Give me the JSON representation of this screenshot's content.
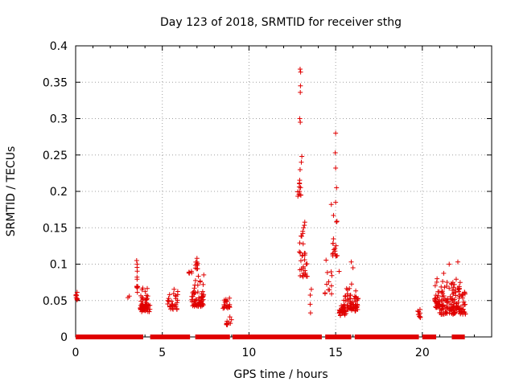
{
  "chart_data": {
    "type": "scatter",
    "title": "Day 123 of 2018, SRMTID for receiver sthg",
    "xlabel": "GPS time / hours",
    "ylabel": "SRMTID / TECUs",
    "xlim": [
      0,
      24
    ],
    "ylim": [
      0,
      0.4
    ],
    "x_ticks": [
      0,
      5,
      10,
      15,
      20
    ],
    "x_tick_labels": [
      "0",
      "5",
      "10",
      "15",
      "20"
    ],
    "y_ticks": [
      0,
      0.05,
      0.1,
      0.15,
      0.2,
      0.25,
      0.3,
      0.35,
      0.4
    ],
    "y_tick_labels": [
      "0",
      "0.05",
      "0.1",
      "0.15",
      "0.2",
      "0.25",
      "0.3",
      "0.35",
      "0.4"
    ],
    "grid": true,
    "marker": "plus",
    "color": "#e00000",
    "zero_segments": [
      [
        0.0,
        3.9
      ],
      [
        4.3,
        6.6
      ],
      [
        6.9,
        8.9
      ],
      [
        9.05,
        14.2
      ],
      [
        14.4,
        15.9
      ],
      [
        16.1,
        19.8
      ],
      [
        20.0,
        20.8
      ],
      [
        21.7,
        22.45
      ]
    ],
    "clusters": [
      {
        "x0": 0.0,
        "x1": 0.12,
        "n": 8,
        "y": [
          0.045,
          0.068
        ]
      },
      {
        "x0": 3.0,
        "x1": 3.1,
        "n": 2,
        "y": [
          0.052,
          0.06
        ]
      },
      {
        "x0": 3.5,
        "x1": 3.6,
        "n": 10,
        "y": [
          0.05,
          0.108
        ]
      },
      {
        "x0": 3.7,
        "x1": 4.3,
        "n": 60,
        "y": [
          0.025,
          0.075
        ]
      },
      {
        "x0": 5.3,
        "x1": 5.9,
        "n": 30,
        "y": [
          0.025,
          0.09
        ]
      },
      {
        "x0": 6.5,
        "x1": 6.7,
        "n": 6,
        "y": [
          0.085,
          0.098
        ]
      },
      {
        "x0": 6.7,
        "x1": 7.4,
        "n": 70,
        "y": [
          0.03,
          0.09
        ]
      },
      {
        "x0": 6.9,
        "x1": 7.1,
        "n": 8,
        "y": [
          0.09,
          0.108
        ]
      },
      {
        "x0": 8.5,
        "x1": 8.9,
        "n": 22,
        "y": [
          0.035,
          0.058
        ]
      },
      {
        "x0": 8.7,
        "x1": 9.0,
        "n": 10,
        "y": [
          0.012,
          0.035
        ]
      },
      {
        "x0": 12.8,
        "x1": 13.0,
        "n": 12,
        "y": [
          0.18,
          0.25
        ]
      },
      {
        "x0": 12.9,
        "x1": 13.4,
        "n": 30,
        "y": [
          0.06,
          0.18
        ]
      },
      {
        "x0": 13.5,
        "x1": 13.6,
        "n": 3,
        "y": [
          0.03,
          0.07
        ]
      },
      {
        "x0": 14.3,
        "x1": 14.8,
        "n": 12,
        "y": [
          0.04,
          0.13
        ]
      },
      {
        "x0": 14.8,
        "x1": 15.1,
        "n": 14,
        "y": [
          0.09,
          0.2
        ]
      },
      {
        "x0": 15.2,
        "x1": 15.6,
        "n": 40,
        "y": [
          0.02,
          0.07
        ]
      },
      {
        "x0": 15.6,
        "x1": 16.3,
        "n": 60,
        "y": [
          0.025,
          0.08
        ]
      },
      {
        "x0": 19.7,
        "x1": 19.9,
        "n": 10,
        "y": [
          0.02,
          0.05
        ]
      },
      {
        "x0": 20.7,
        "x1": 21.0,
        "n": 30,
        "y": [
          0.03,
          0.085
        ]
      },
      {
        "x0": 21.0,
        "x1": 22.5,
        "n": 140,
        "y": [
          0.015,
          0.1
        ]
      }
    ],
    "points": [
      [
        12.95,
        0.368
      ],
      [
        12.98,
        0.364
      ],
      [
        12.97,
        0.345
      ],
      [
        12.96,
        0.336
      ],
      [
        12.93,
        0.3
      ],
      [
        12.96,
        0.295
      ],
      [
        15.0,
        0.28
      ],
      [
        14.98,
        0.253
      ],
      [
        15.0,
        0.232
      ],
      [
        13.05,
        0.248
      ],
      [
        13.02,
        0.24
      ],
      [
        15.05,
        0.205
      ],
      [
        15.0,
        0.185
      ],
      [
        14.75,
        0.182
      ],
      [
        15.05,
        0.158
      ],
      [
        13.1,
        0.145
      ],
      [
        13.15,
        0.15
      ],
      [
        14.85,
        0.115
      ],
      [
        14.9,
        0.12
      ],
      [
        13.2,
        0.115
      ],
      [
        15.2,
        0.09
      ],
      [
        15.9,
        0.103
      ],
      [
        16.0,
        0.095
      ],
      [
        13.55,
        0.033
      ],
      [
        4.08,
        0.057
      ],
      [
        7.0,
        0.108
      ],
      [
        6.98,
        0.1
      ],
      [
        3.52,
        0.105
      ],
      [
        3.55,
        0.1
      ],
      [
        22.05,
        0.103
      ],
      [
        21.55,
        0.1
      ],
      [
        20.85,
        0.08
      ]
    ]
  }
}
